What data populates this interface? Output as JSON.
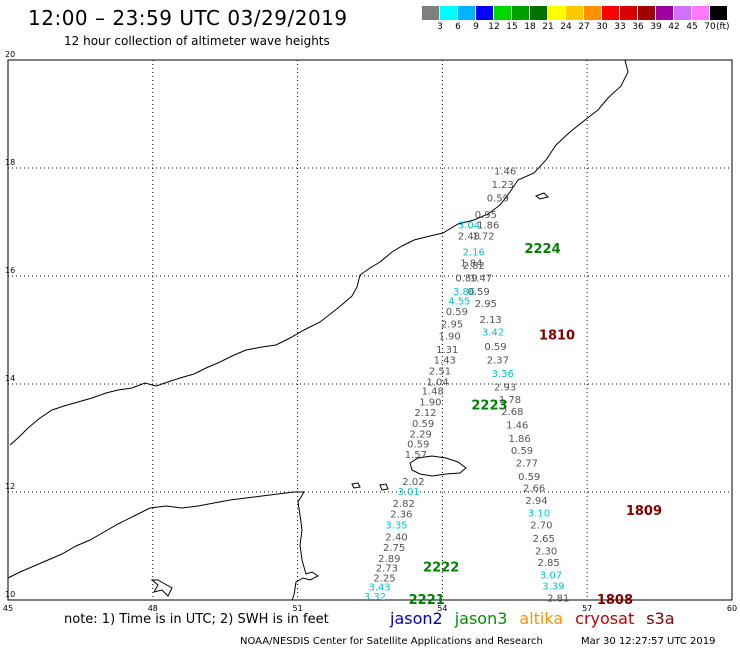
{
  "header": {
    "title": "12:00 – 23:59 UTC 03/29/2019",
    "subtitle": "12 hour collection of altimeter wave heights"
  },
  "legend": {
    "colors": [
      "#7f7f7f",
      "#00ffff",
      "#00b2ff",
      "#0000ff",
      "#00d800",
      "#00a000",
      "#007000",
      "#ffff00",
      "#ffc800",
      "#ff9000",
      "#ff0000",
      "#d80000",
      "#a00000",
      "#a000a0",
      "#d070ff",
      "#ff78ff",
      "#000000"
    ],
    "labels": [
      "3",
      "6",
      "9",
      "12",
      "15",
      "18",
      "21",
      "24",
      "27",
      "30",
      "33",
      "36",
      "39",
      "42",
      "45",
      "70"
    ],
    "unit": "(ft)"
  },
  "map": {
    "lon_ticks": [
      "45",
      "48",
      "51",
      "54",
      "57",
      "60"
    ],
    "lat_ticks": [
      "10",
      "12",
      "14",
      "16",
      "18",
      "20"
    ],
    "lat_range": [
      10,
      20
    ],
    "lon_range": [
      45,
      60
    ],
    "gridlines": "dotted",
    "tracks": [
      {
        "id": "2224",
        "color": "#008000",
        "label_lat": 16.5,
        "label_lon": 55.7
      },
      {
        "id": "1810",
        "color": "#800000",
        "label_lat": 14.9,
        "label_lon": 56.0
      },
      {
        "id": "2223",
        "color": "#008000",
        "label_lat": 13.6,
        "label_lon": 54.6
      },
      {
        "id": "1809",
        "color": "#800000",
        "label_lat": 11.65,
        "label_lon": 57.8
      },
      {
        "id": "2222",
        "color": "#008000",
        "label_lat": 10.6,
        "label_lon": 53.6
      },
      {
        "id": "1808",
        "color": "#800000",
        "label_lat": 10.0,
        "label_lon": 57.2
      },
      {
        "id": "2221",
        "color": "#008000",
        "label_lat": 10.0,
        "label_lon": 53.3
      }
    ],
    "observations": [
      {
        "v": "1.46",
        "lat": 17.95,
        "lon": 55.3,
        "c": "#555555"
      },
      {
        "v": "1.23",
        "lat": 17.7,
        "lon": 55.25,
        "c": "#555555"
      },
      {
        "v": "0.59",
        "lat": 17.45,
        "lon": 55.15,
        "c": "#555555"
      },
      {
        "v": "0.95",
        "lat": 17.15,
        "lon": 54.9,
        "c": "#555555"
      },
      {
        "v": "3.04",
        "lat": 16.95,
        "lon": 54.55,
        "c": "#00c8c8"
      },
      {
        "v": "1.86",
        "lat": 16.95,
        "lon": 54.95,
        "c": "#555555"
      },
      {
        "v": "2.48",
        "lat": 16.75,
        "lon": 54.55,
        "c": "#555555"
      },
      {
        "v": "1.72",
        "lat": 16.75,
        "lon": 54.85,
        "c": "#555555"
      },
      {
        "v": "2.16",
        "lat": 16.45,
        "lon": 54.65,
        "c": "#00c8c8"
      },
      {
        "v": "1.84",
        "lat": 16.25,
        "lon": 54.6,
        "c": "#555555"
      },
      {
        "v": "2.82",
        "lat": 16.2,
        "lon": 54.65,
        "c": "#555555"
      },
      {
        "v": "0.89",
        "lat": 15.97,
        "lon": 54.5,
        "c": "#555555"
      },
      {
        "v": "1.47",
        "lat": 15.97,
        "lon": 54.8,
        "c": "#555555"
      },
      {
        "v": "3.86",
        "lat": 15.72,
        "lon": 54.45,
        "c": "#00c8c8"
      },
      {
        "v": "0.59",
        "lat": 15.72,
        "lon": 54.75,
        "c": "#555555"
      },
      {
        "v": "4.55",
        "lat": 15.55,
        "lon": 54.35,
        "c": "#00c8c8"
      },
      {
        "v": "2.95",
        "lat": 15.5,
        "lon": 54.9,
        "c": "#555555"
      },
      {
        "v": "0.59",
        "lat": 15.35,
        "lon": 54.3,
        "c": "#555555"
      },
      {
        "v": "2.13",
        "lat": 15.2,
        "lon": 55.0,
        "c": "#555555"
      },
      {
        "v": "2.95",
        "lat": 15.12,
        "lon": 54.2,
        "c": "#555555"
      },
      {
        "v": "3.42",
        "lat": 14.97,
        "lon": 55.05,
        "c": "#00c8c8"
      },
      {
        "v": "1.90",
        "lat": 14.9,
        "lon": 54.15,
        "c": "#555555"
      },
      {
        "v": "0.59",
        "lat": 14.7,
        "lon": 55.1,
        "c": "#555555"
      },
      {
        "v": "1.31",
        "lat": 14.65,
        "lon": 54.1,
        "c": "#555555"
      },
      {
        "v": "1.43",
        "lat": 14.45,
        "lon": 54.05,
        "c": "#555555"
      },
      {
        "v": "2.37",
        "lat": 14.45,
        "lon": 55.15,
        "c": "#555555"
      },
      {
        "v": "2.51",
        "lat": 14.25,
        "lon": 53.95,
        "c": "#555555"
      },
      {
        "v": "3.36",
        "lat": 14.2,
        "lon": 55.25,
        "c": "#00c8c8"
      },
      {
        "v": "1.04",
        "lat": 14.05,
        "lon": 53.9,
        "c": "#555555"
      },
      {
        "v": "2.93",
        "lat": 13.95,
        "lon": 55.3,
        "c": "#555555"
      },
      {
        "v": "1.48",
        "lat": 13.88,
        "lon": 53.8,
        "c": "#555555"
      },
      {
        "v": "1.78",
        "lat": 13.72,
        "lon": 55.4,
        "c": "#555555"
      },
      {
        "v": "1.90",
        "lat": 13.68,
        "lon": 53.75,
        "c": "#555555"
      },
      {
        "v": "2.12",
        "lat": 13.48,
        "lon": 53.65,
        "c": "#555555"
      },
      {
        "v": "2.68",
        "lat": 13.5,
        "lon": 55.45,
        "c": "#555555"
      },
      {
        "v": "0.59",
        "lat": 13.28,
        "lon": 53.6,
        "c": "#555555"
      },
      {
        "v": "1.46",
        "lat": 13.25,
        "lon": 55.55,
        "c": "#555555"
      },
      {
        "v": "2.29",
        "lat": 13.08,
        "lon": 53.55,
        "c": "#555555"
      },
      {
        "v": "1.86",
        "lat": 13.0,
        "lon": 55.6,
        "c": "#555555"
      },
      {
        "v": "0.59",
        "lat": 12.9,
        "lon": 53.5,
        "c": "#555555"
      },
      {
        "v": "0.59",
        "lat": 12.78,
        "lon": 55.65,
        "c": "#555555"
      },
      {
        "v": "1.57",
        "lat": 12.7,
        "lon": 53.45,
        "c": "#555555"
      },
      {
        "v": "2.77",
        "lat": 12.55,
        "lon": 55.75,
        "c": "#555555"
      },
      {
        "v": "0.59",
        "lat": 12.3,
        "lon": 55.8,
        "c": "#555555"
      },
      {
        "v": "2.02",
        "lat": 12.2,
        "lon": 53.4,
        "c": "#555555"
      },
      {
        "v": "2.66",
        "lat": 12.08,
        "lon": 55.9,
        "c": "#555555"
      },
      {
        "v": "3.01",
        "lat": 12.02,
        "lon": 53.3,
        "c": "#00c8c8"
      },
      {
        "v": "2.94",
        "lat": 11.85,
        "lon": 55.95,
        "c": "#555555"
      },
      {
        "v": "2.82",
        "lat": 11.8,
        "lon": 53.2,
        "c": "#555555"
      },
      {
        "v": "3.10",
        "lat": 11.62,
        "lon": 56.0,
        "c": "#00c8c8"
      },
      {
        "v": "2.36",
        "lat": 11.6,
        "lon": 53.15,
        "c": "#555555"
      },
      {
        "v": "2.70",
        "lat": 11.4,
        "lon": 56.05,
        "c": "#555555"
      },
      {
        "v": "3.35",
        "lat": 11.4,
        "lon": 53.05,
        "c": "#00c8c8"
      },
      {
        "v": "2.40",
        "lat": 11.18,
        "lon": 53.05,
        "c": "#555555"
      },
      {
        "v": "2.65",
        "lat": 11.15,
        "lon": 56.1,
        "c": "#555555"
      },
      {
        "v": "2.75",
        "lat": 10.98,
        "lon": 53.0,
        "c": "#555555"
      },
      {
        "v": "2.30",
        "lat": 10.92,
        "lon": 56.15,
        "c": "#555555"
      },
      {
        "v": "2.89",
        "lat": 10.78,
        "lon": 52.9,
        "c": "#555555"
      },
      {
        "v": "2.85",
        "lat": 10.7,
        "lon": 56.2,
        "c": "#555555"
      },
      {
        "v": "2.73",
        "lat": 10.6,
        "lon": 52.85,
        "c": "#555555"
      },
      {
        "v": "3.07",
        "lat": 10.47,
        "lon": 56.25,
        "c": "#00c8c8"
      },
      {
        "v": "2.25",
        "lat": 10.42,
        "lon": 52.8,
        "c": "#555555"
      },
      {
        "v": "3.39",
        "lat": 10.27,
        "lon": 56.3,
        "c": "#00c8c8"
      },
      {
        "v": "3.43",
        "lat": 10.25,
        "lon": 52.7,
        "c": "#00c8c8"
      },
      {
        "v": "3.32",
        "lat": 10.07,
        "lon": 52.6,
        "c": "#00c8c8"
      },
      {
        "v": "2.81",
        "lat": 10.05,
        "lon": 56.4,
        "c": "#555555"
      }
    ]
  },
  "footer": {
    "note": "note: 1) Time is in UTC; 2) SWH is in feet",
    "satellites": [
      {
        "name": "jason2",
        "color": "#0000c8"
      },
      {
        "name": "jason3",
        "color": "#009000"
      },
      {
        "name": "altika",
        "color": "#ff9000"
      },
      {
        "name": "cryosat",
        "color": "#c00000"
      },
      {
        "name": "s3a",
        "color": "#800000"
      }
    ],
    "credit": "NOAA/NESDIS Center for Satellite Applications and Research",
    "timestamp": "Mar 30 12:27:57 UTC 2019"
  }
}
